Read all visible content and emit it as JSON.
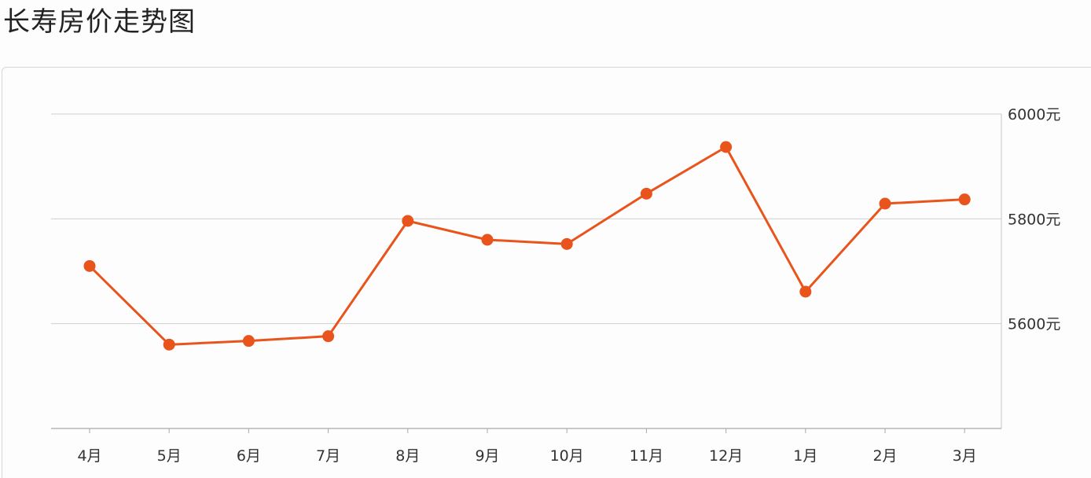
{
  "page": {
    "title": "长寿房价走势图"
  },
  "chart_data": {
    "type": "line",
    "categories": [
      "4月",
      "5月",
      "6月",
      "7月",
      "8月",
      "9月",
      "10月",
      "11月",
      "12月",
      "1月",
      "2月",
      "3月"
    ],
    "series": [
      {
        "values": [
          5710,
          5560,
          5567,
          5576,
          5796,
          5760,
          5752,
          5848,
          5937,
          5661,
          5829,
          5837
        ],
        "color": "#e8541c"
      }
    ],
    "y_ticks": [
      5600,
      5800,
      6000
    ],
    "y_tick_suffix": "元",
    "ylim": [
      5400,
      6000
    ],
    "y_axis_side": "right",
    "grid": true,
    "title": "长寿房价走势图",
    "xlabel": "",
    "ylabel": ""
  }
}
